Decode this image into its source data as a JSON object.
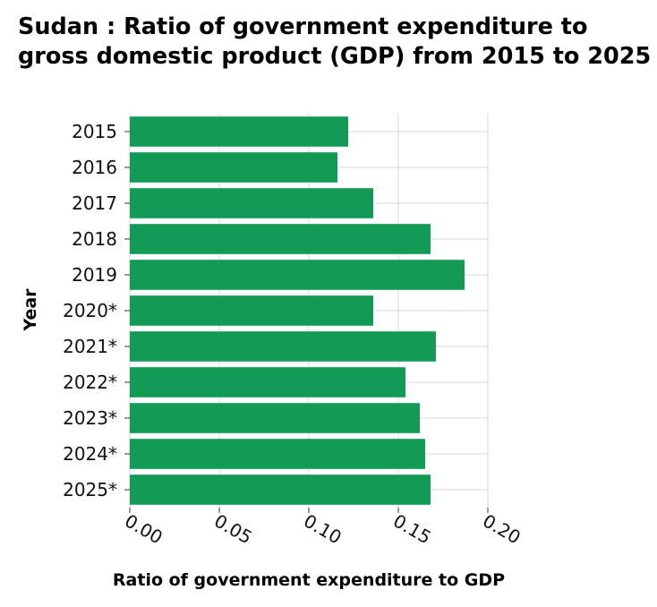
{
  "chart_data": {
    "type": "bar",
    "orientation": "horizontal",
    "title": "Sudan : Ratio of government expenditure to gross domestic product (GDP) from 2015 to 2025",
    "xlabel": "Ratio of government expenditure to GDP",
    "ylabel": "Year",
    "categories": [
      "2015",
      "2016",
      "2017",
      "2018",
      "2019",
      "2020*",
      "2021*",
      "2022*",
      "2023*",
      "2024*",
      "2025*"
    ],
    "values": [
      0.122,
      0.116,
      0.136,
      0.168,
      0.187,
      0.136,
      0.171,
      0.154,
      0.162,
      0.165,
      0.168
    ],
    "xlim": [
      0,
      0.2
    ],
    "xticks": [
      "0.00",
      "0.05",
      "0.10",
      "0.15",
      "0.20"
    ],
    "xtick_values": [
      0,
      0.05,
      0.1,
      0.15,
      0.2
    ],
    "grid": true,
    "bar_color": "#139b56",
    "grid_color": "#d6d6d6"
  }
}
